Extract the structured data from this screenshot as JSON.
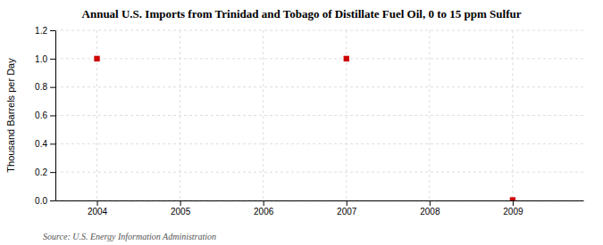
{
  "chart_data": {
    "type": "scatter",
    "title": "Annual U.S. Imports from Trinidad and Tobago of Distillate Fuel Oil, 0 to 15 ppm Sulfur",
    "y_label": "Thousand Barrels per Day",
    "source": "Source: U.S. Energy Information Administration",
    "x": [
      2004,
      2007,
      2009
    ],
    "values": [
      1.0,
      1.0,
      0.003
    ],
    "color": "#cc0000",
    "marker": "square",
    "xlim": [
      2003.5,
      2009.85
    ],
    "ylim": [
      0.0,
      1.2
    ],
    "xticks": [
      2004,
      2005,
      2006,
      2007,
      2008,
      2009
    ],
    "yticks": [
      {
        "value": 0.0,
        "label": "0.0"
      },
      0.2,
      0.4,
      0.6,
      0.8,
      {
        "value": 1.0,
        "label": "1.0"
      },
      1.2
    ],
    "grid": true
  }
}
